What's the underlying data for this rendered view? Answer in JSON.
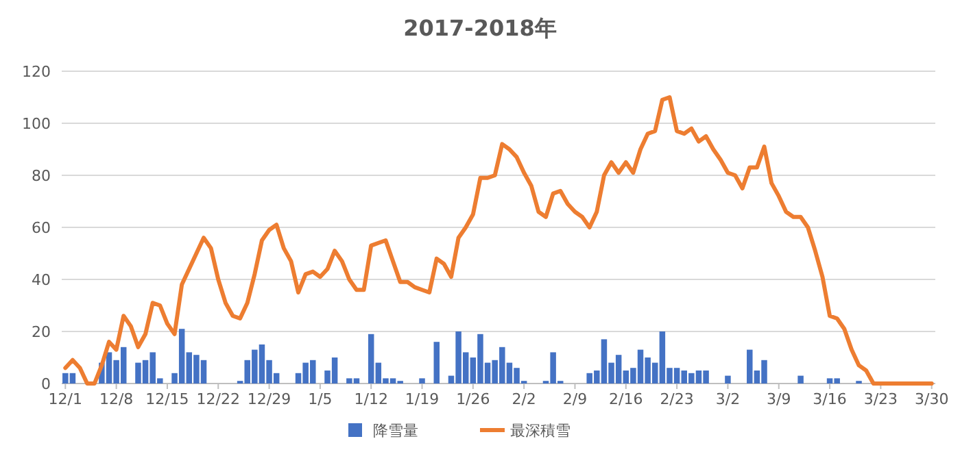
{
  "chart_data": {
    "type": "bar",
    "title": "2017-2018年",
    "categories": [
      "12/1",
      null,
      null,
      null,
      null,
      null,
      null,
      "12/8",
      null,
      null,
      null,
      null,
      null,
      null,
      "12/15",
      null,
      null,
      null,
      null,
      null,
      null,
      "12/22",
      null,
      null,
      null,
      null,
      null,
      null,
      "12/29",
      null,
      null,
      null,
      null,
      null,
      null,
      "1/5",
      null,
      null,
      null,
      null,
      null,
      null,
      "1/12",
      null,
      null,
      null,
      null,
      null,
      null,
      "1/19",
      null,
      null,
      null,
      null,
      null,
      null,
      "1/26",
      null,
      null,
      null,
      null,
      null,
      null,
      "2/2",
      null,
      null,
      null,
      null,
      null,
      null,
      "2/9",
      null,
      null,
      null,
      null,
      null,
      null,
      "2/16",
      null,
      null,
      null,
      null,
      null,
      null,
      "2/23",
      null,
      null,
      null,
      null,
      null,
      null,
      "3/2",
      null,
      null,
      null,
      null,
      null,
      null,
      "3/9",
      null,
      null,
      null,
      null,
      null,
      null,
      "3/16",
      null,
      null,
      null,
      null,
      null,
      null,
      "3/23",
      null,
      null,
      null,
      null,
      null,
      null,
      "3/30"
    ],
    "series": [
      {
        "name": "降雪量",
        "color": "#4472c4",
        "values": [
          4,
          4,
          0,
          0,
          0,
          8,
          12,
          9,
          14,
          0,
          8,
          9,
          12,
          2,
          0,
          4,
          21,
          12,
          11,
          9,
          0,
          0,
          0,
          0,
          1,
          9,
          13,
          15,
          9,
          4,
          0,
          0,
          4,
          8,
          9,
          0,
          5,
          10,
          0,
          2,
          2,
          0,
          19,
          8,
          2,
          2,
          1,
          0,
          0,
          2,
          0,
          16,
          0,
          3,
          20,
          12,
          10,
          19,
          8,
          9,
          14,
          8,
          6,
          1,
          0,
          0,
          1,
          12,
          1,
          0,
          0,
          0,
          4,
          5,
          17,
          8,
          11,
          5,
          6,
          13,
          10,
          8,
          20,
          6,
          6,
          5,
          4,
          5,
          5,
          0,
          0,
          3,
          0,
          0,
          13,
          5,
          9,
          0,
          0,
          0,
          0,
          3,
          0,
          0,
          0,
          2,
          2,
          0,
          0,
          1,
          0,
          0,
          0,
          0,
          0,
          0,
          0,
          0,
          0,
          0
        ]
      },
      {
        "name": "最深積雪",
        "type": "line",
        "color": "#ed7d31",
        "values": [
          6,
          9,
          6,
          0,
          0,
          7,
          16,
          13,
          26,
          22,
          14,
          19,
          31,
          30,
          23,
          19,
          38,
          44,
          50,
          56,
          52,
          40,
          31,
          26,
          25,
          31,
          42,
          55,
          59,
          61,
          52,
          47,
          35,
          42,
          43,
          41,
          44,
          51,
          47,
          40,
          36,
          36,
          53,
          54,
          55,
          47,
          39,
          39,
          37,
          36,
          35,
          48,
          46,
          41,
          56,
          60,
          65,
          79,
          79,
          80,
          92,
          90,
          87,
          81,
          76,
          66,
          64,
          73,
          74,
          69,
          66,
          64,
          60,
          66,
          80,
          85,
          81,
          85,
          81,
          90,
          96,
          97,
          109,
          110,
          97,
          96,
          98,
          93,
          95,
          90,
          86,
          81,
          80,
          75,
          83,
          83,
          91,
          77,
          72,
          66,
          64,
          64,
          60,
          51,
          41,
          26,
          25,
          21,
          13,
          7,
          5,
          0,
          0,
          0,
          0,
          0,
          0,
          0,
          0,
          0
        ]
      }
    ],
    "ylim": [
      0,
      120
    ],
    "yticks": [
      0,
      20,
      40,
      60,
      80,
      100,
      120
    ],
    "grid": "y",
    "legend": "bottom"
  }
}
